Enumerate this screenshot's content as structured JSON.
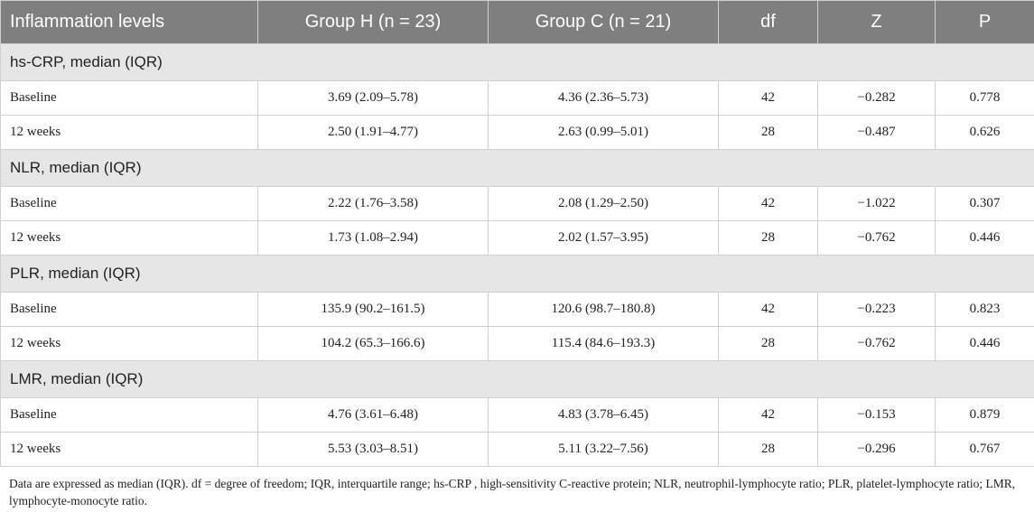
{
  "headers": [
    "Inflammation levels",
    "Group H (n = 23)",
    "Group C (n = 21)",
    "df",
    "Z",
    "P"
  ],
  "sections": [
    {
      "title": "hs-CRP, median (IQR)",
      "rows": [
        {
          "label": "Baseline",
          "h": "3.69 (2.09–5.78)",
          "c": "4.36 (2.36–5.73)",
          "df": "42",
          "z": "−0.282",
          "p": "0.778"
        },
        {
          "label": "12 weeks",
          "h": "2.50 (1.91–4.77)",
          "c": "2.63 (0.99–5.01)",
          "df": "28",
          "z": "−0.487",
          "p": "0.626"
        }
      ]
    },
    {
      "title": "NLR, median (IQR)",
      "rows": [
        {
          "label": "Baseline",
          "h": "2.22 (1.76–3.58)",
          "c": "2.08 (1.29–2.50)",
          "df": "42",
          "z": "−1.022",
          "p": "0.307"
        },
        {
          "label": "12 weeks",
          "h": "1.73 (1.08–2.94)",
          "c": "2.02 (1.57–3.95)",
          "df": "28",
          "z": "−0.762",
          "p": "0.446"
        }
      ]
    },
    {
      "title": "PLR, median (IQR)",
      "rows": [
        {
          "label": "Baseline",
          "h": "135.9 (90.2–161.5)",
          "c": "120.6 (98.7–180.8)",
          "df": "42",
          "z": "−0.223",
          "p": "0.823"
        },
        {
          "label": "12 weeks",
          "h": "104.2 (65.3–166.6)",
          "c": "115.4 (84.6–193.3)",
          "df": "28",
          "z": "−0.762",
          "p": "0.446"
        }
      ]
    },
    {
      "title": "LMR, median (IQR)",
      "rows": [
        {
          "label": "Baseline",
          "h": "4.76 (3.61–6.48)",
          "c": "4.83 (3.78–6.45)",
          "df": "42",
          "z": "−0.153",
          "p": "0.879"
        },
        {
          "label": "12 weeks",
          "h": "5.53 (3.03–8.51)",
          "c": "5.11 (3.22–7.56)",
          "df": "28",
          "z": "−0.296",
          "p": "0.767"
        }
      ]
    }
  ],
  "footnote": "Data are expressed as median (IQR). df = degree of freedom; IQR, interquartile range; hs-CRP , high-sensitivity C-reactive protein; NLR, neutrophil-lymphocyte ratio; PLR, platelet-lymphocyte ratio; LMR, lymphocyte-monocyte ratio."
}
